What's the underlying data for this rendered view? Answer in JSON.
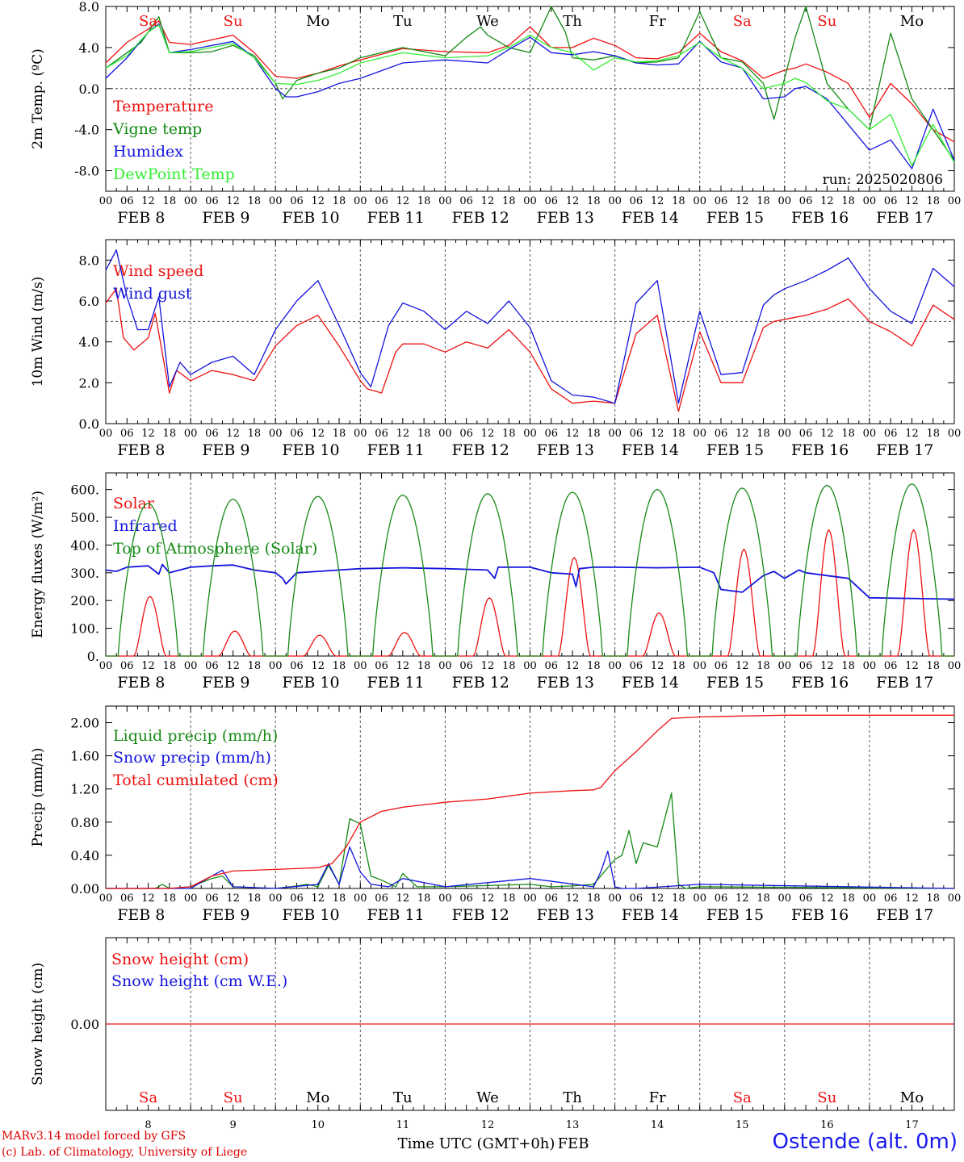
{
  "page": {
    "model_credit": "MARv3.14 model forced by GFS",
    "lab_credit": "(c) Lab. of Climatology, University of Liege",
    "station": "Ostende (alt. 0m)",
    "time_axis_title": "Time UTC (GMT+0h)",
    "month": "FEB"
  },
  "colors": {
    "red": "#ee1111",
    "green": "#158a15",
    "blue": "#1414dd",
    "light_green": "#33ee33",
    "grid": "#444444"
  },
  "axis": {
    "hour_ticks": [
      "00",
      "06",
      "12",
      "18"
    ],
    "end_tick": "00",
    "dates": [
      "FEB  8",
      "FEB  9",
      "FEB 10",
      "FEB 11",
      "FEB 12",
      "FEB 13",
      "FEB 14",
      "FEB 15",
      "FEB 16",
      "FEB 17"
    ],
    "weekdays": [
      "Sa",
      "Su",
      "Mo",
      "Tu",
      "We",
      "Th",
      "Fr",
      "Sa",
      "Su",
      "Mo"
    ],
    "weekend": [
      true,
      true,
      false,
      false,
      false,
      false,
      false,
      true,
      true,
      false
    ],
    "day_numbers": [
      "8",
      "9",
      "10",
      "11",
      "12",
      "13",
      "14",
      "15",
      "16",
      "17"
    ]
  },
  "chart_data": [
    {
      "type": "line",
      "ylabel": "2m Temp. (ºC)",
      "ylim": [
        -10,
        8
      ],
      "yticks": [
        8,
        4,
        0,
        -4,
        -8
      ],
      "ytick_labels": [
        "8.0",
        "4.0",
        "0.0",
        "-4.0",
        "-8.0"
      ],
      "x_unit": "hours since FEB 8 00 UTC",
      "ref_line": 0,
      "annotation": "run: 2025020806",
      "series": [
        {
          "name": "Temperature",
          "color": "red",
          "x": [
            0,
            6,
            12,
            15,
            18,
            24,
            36,
            42,
            48,
            54,
            60,
            66,
            72,
            84,
            96,
            108,
            114,
            120,
            126,
            132,
            138,
            144,
            150,
            156,
            162,
            168,
            174,
            180,
            186,
            192,
            195,
            198,
            204,
            210,
            216,
            222,
            228,
            234,
            240
          ],
          "y": [
            2.5,
            4.5,
            5.8,
            6.6,
            4.5,
            4.3,
            5.2,
            3.5,
            1.2,
            1.0,
            1.5,
            2.2,
            2.8,
            3.9,
            3.6,
            3.5,
            4.2,
            6.0,
            4.0,
            4.0,
            4.9,
            4.2,
            3.0,
            2.9,
            3.5,
            5.4,
            3.6,
            2.7,
            1.0,
            1.8,
            2.0,
            2.4,
            1.6,
            0.5,
            -2.8,
            0.5,
            -1.5,
            -4.0,
            -5.2
          ]
        },
        {
          "name": "Vigne temp",
          "color": "green",
          "x": [
            0,
            6,
            10,
            12,
            15,
            18,
            24,
            30,
            36,
            42,
            48,
            50,
            54,
            60,
            66,
            72,
            84,
            96,
            102,
            106,
            108,
            114,
            120,
            126,
            130,
            132,
            138,
            144,
            150,
            156,
            162,
            168,
            174,
            180,
            186,
            189,
            192,
            195,
            198,
            204,
            210,
            216,
            222,
            228,
            234,
            240
          ],
          "y": [
            2.0,
            3.5,
            4.5,
            5.5,
            7.0,
            3.5,
            3.5,
            3.6,
            4.2,
            3.2,
            0.5,
            -1.0,
            0.8,
            1.5,
            2.0,
            3.0,
            4.0,
            3.2,
            5.0,
            6.0,
            5.2,
            4.0,
            3.5,
            8.0,
            5.5,
            3.0,
            2.8,
            3.2,
            2.5,
            2.6,
            3.0,
            7.5,
            3.0,
            2.6,
            0.5,
            -3.0,
            1.0,
            5.0,
            8.0,
            0.5,
            -2.0,
            -4.0,
            5.4,
            -1.0,
            -4.0,
            -7.0
          ]
        },
        {
          "name": "Humidex",
          "color": "blue",
          "x": [
            0,
            6,
            12,
            15,
            18,
            24,
            36,
            42,
            48,
            51,
            54,
            60,
            66,
            72,
            84,
            96,
            108,
            114,
            120,
            126,
            132,
            138,
            144,
            150,
            156,
            162,
            168,
            174,
            180,
            186,
            192,
            195,
            198,
            204,
            210,
            216,
            222,
            228,
            234,
            240
          ],
          "y": [
            1.0,
            3.0,
            5.5,
            6.3,
            3.5,
            3.8,
            4.6,
            3.0,
            0.0,
            -0.8,
            -0.8,
            -0.3,
            0.5,
            1.0,
            2.5,
            2.8,
            2.5,
            3.8,
            5.0,
            3.5,
            3.3,
            3.6,
            3.2,
            2.5,
            2.3,
            2.4,
            4.6,
            2.6,
            2.0,
            -1.0,
            -0.8,
            0.0,
            0.2,
            -1.0,
            -3.5,
            -6.0,
            -5.0,
            -7.8,
            -2.0,
            -7.0
          ]
        },
        {
          "name": "DewPoint Temp",
          "color": "light_green",
          "x": [
            0,
            6,
            12,
            15,
            18,
            24,
            36,
            42,
            48,
            54,
            60,
            66,
            72,
            84,
            96,
            108,
            114,
            120,
            126,
            132,
            138,
            144,
            150,
            156,
            162,
            168,
            174,
            180,
            186,
            192,
            195,
            198,
            204,
            210,
            216,
            222,
            228,
            234,
            240
          ],
          "y": [
            2.0,
            3.2,
            5.5,
            6.2,
            3.5,
            3.6,
            4.4,
            3.0,
            0.5,
            0.4,
            0.8,
            1.5,
            2.5,
            3.5,
            3.0,
            3.2,
            4.0,
            5.2,
            4.0,
            3.5,
            1.8,
            3.0,
            2.6,
            2.7,
            3.2,
            4.5,
            3.0,
            2.0,
            0.0,
            0.5,
            1.0,
            0.6,
            -1.2,
            -2.0,
            -4.0,
            -2.5,
            -7.5,
            -3.5,
            -7.2
          ]
        }
      ]
    },
    {
      "type": "line",
      "ylabel": "10m Wind (m/s)",
      "ylim": [
        0,
        9
      ],
      "yticks": [
        0,
        2,
        4,
        6,
        8
      ],
      "ytick_labels": [
        "0.0",
        "2.0",
        "4.0",
        "6.0",
        "8.0"
      ],
      "ref_line": 5,
      "series": [
        {
          "name": "Wind speed",
          "color": "red",
          "x": [
            0,
            3,
            5,
            8,
            12,
            14,
            18,
            20,
            24,
            30,
            36,
            42,
            48,
            54,
            60,
            66,
            72,
            74,
            78,
            82,
            84,
            90,
            96,
            102,
            108,
            114,
            120,
            126,
            132,
            138,
            144,
            150,
            156,
            162,
            168,
            174,
            180,
            186,
            189,
            192,
            198,
            204,
            210,
            216,
            222,
            228,
            234,
            240
          ],
          "y": [
            5.9,
            6.6,
            4.2,
            3.6,
            4.2,
            5.4,
            1.5,
            2.6,
            2.1,
            2.6,
            2.4,
            2.1,
            3.8,
            4.8,
            5.3,
            3.8,
            2.1,
            1.7,
            1.5,
            3.5,
            3.9,
            3.9,
            3.5,
            4.0,
            3.7,
            4.6,
            3.5,
            1.7,
            1.0,
            1.1,
            1.0,
            4.4,
            5.3,
            0.6,
            4.5,
            2.0,
            2.0,
            4.7,
            5.0,
            5.1,
            5.3,
            5.6,
            6.1,
            5.0,
            4.5,
            3.8,
            5.8,
            5.1
          ]
        },
        {
          "name": "Wind gust",
          "color": "blue",
          "x": [
            0,
            3,
            6,
            9,
            12,
            15,
            18,
            21,
            24,
            30,
            36,
            42,
            48,
            54,
            60,
            66,
            72,
            75,
            80,
            84,
            90,
            96,
            102,
            108,
            114,
            120,
            126,
            132,
            138,
            144,
            150,
            156,
            162,
            168,
            174,
            180,
            186,
            189,
            192,
            198,
            204,
            210,
            216,
            222,
            228,
            234,
            240
          ],
          "y": [
            7.5,
            8.5,
            6.2,
            4.6,
            4.6,
            6.2,
            1.8,
            3.0,
            2.4,
            3.0,
            3.3,
            2.4,
            4.6,
            6.0,
            7.0,
            4.8,
            2.5,
            1.8,
            4.8,
            5.9,
            5.5,
            4.6,
            5.5,
            4.9,
            6.0,
            4.7,
            2.1,
            1.4,
            1.3,
            1.0,
            5.9,
            7.0,
            1.0,
            5.5,
            2.4,
            2.5,
            5.8,
            6.3,
            6.6,
            7.0,
            7.5,
            8.1,
            6.6,
            5.5,
            4.9,
            7.6,
            6.7
          ]
        }
      ]
    },
    {
      "type": "line",
      "ylabel": "Energy fluxes (W/m²)",
      "ylim": [
        0,
        660
      ],
      "yticks": [
        0,
        100,
        200,
        300,
        400,
        500,
        600
      ],
      "ytick_labels": [
        "0.",
        "100.",
        "200.",
        "300.",
        "400.",
        "500.",
        "600."
      ],
      "series": [
        {
          "name": "Solar",
          "color": "red",
          "peak_hours": [
            12.5,
            12.5,
            12.5,
            12.5,
            12.5,
            12.5,
            12.5,
            12.5,
            12.5,
            12.5
          ],
          "peak_values": [
            215,
            90,
            75,
            85,
            210,
            355,
            155,
            385,
            455,
            455
          ]
        },
        {
          "name": "Infrared",
          "color": "blue",
          "x": [
            0,
            3,
            6,
            12,
            15,
            16,
            18,
            24,
            30,
            36,
            42,
            48,
            50,
            51,
            54,
            60,
            66,
            72,
            84,
            96,
            108,
            110,
            111,
            114,
            120,
            126,
            132,
            133,
            134,
            138,
            144,
            156,
            168,
            172,
            174,
            180,
            186,
            189,
            192,
            196,
            198,
            204,
            210,
            216,
            240
          ],
          "y": [
            310,
            305,
            320,
            325,
            295,
            330,
            300,
            320,
            325,
            328,
            310,
            300,
            280,
            260,
            300,
            305,
            310,
            315,
            318,
            315,
            310,
            280,
            320,
            320,
            320,
            300,
            295,
            250,
            315,
            320,
            320,
            318,
            320,
            300,
            240,
            230,
            290,
            305,
            280,
            310,
            300,
            290,
            280,
            210,
            205
          ]
        },
        {
          "name": "Top of Atmosphere (Solar)",
          "color": "green",
          "peak_hours": [
            12,
            12,
            12,
            12,
            12,
            12,
            12,
            12,
            12,
            12
          ],
          "peak_values": [
            550,
            565,
            575,
            580,
            585,
            590,
            600,
            605,
            615,
            620
          ]
        }
      ]
    },
    {
      "type": "line",
      "ylabel": "Precip (mm/h)",
      "ylim": [
        0,
        2.2
      ],
      "yticks": [
        0,
        0.4,
        0.8,
        1.2,
        1.6,
        2.0
      ],
      "ytick_labels": [
        "0.00",
        "0.40",
        "0.80",
        "1.20",
        "1.60",
        "2.00"
      ],
      "series": [
        {
          "name": "Liquid precip (mm/h)",
          "color": "green",
          "x": [
            0,
            14,
            16,
            18,
            24,
            30,
            33,
            36,
            48,
            54,
            57,
            60,
            63,
            66,
            69,
            72,
            75,
            78,
            82,
            84,
            88,
            96,
            120,
            126,
            132,
            138,
            142,
            144,
            146,
            148,
            150,
            152,
            156,
            160,
            162,
            164,
            168,
            240
          ],
          "y": [
            0,
            0,
            0.05,
            0,
            0.02,
            0.12,
            0.15,
            0.02,
            0,
            0.03,
            0.05,
            0.02,
            0.28,
            0.05,
            0.84,
            0.78,
            0.15,
            0.1,
            0.02,
            0.18,
            0.02,
            0.02,
            0.05,
            0.02,
            0.03,
            0.05,
            0.25,
            0.35,
            0.4,
            0.7,
            0.3,
            0.55,
            0.5,
            1.15,
            0.05,
            0,
            0.02,
            0
          ]
        },
        {
          "name": "Snow precip (mm/h)",
          "color": "blue",
          "x": [
            0,
            24,
            30,
            33,
            36,
            48,
            60,
            63,
            66,
            69,
            72,
            75,
            80,
            84,
            96,
            120,
            138,
            140,
            142,
            144,
            146,
            150,
            168,
            240
          ],
          "y": [
            0,
            0,
            0.15,
            0.22,
            0.02,
            0,
            0.05,
            0.3,
            0.05,
            0.5,
            0.2,
            0.05,
            0.02,
            0.12,
            0.02,
            0.12,
            0.02,
            0.2,
            0.45,
            0.02,
            0,
            0,
            0.05,
            0
          ]
        },
        {
          "name": "Total cumulated (cm)",
          "color": "red",
          "x": [
            0,
            18,
            24,
            30,
            36,
            48,
            60,
            64,
            68,
            72,
            78,
            84,
            96,
            108,
            120,
            132,
            138,
            140,
            144,
            150,
            156,
            160,
            168,
            180,
            192,
            240
          ],
          "y": [
            0,
            0,
            0.02,
            0.15,
            0.21,
            0.23,
            0.25,
            0.3,
            0.5,
            0.8,
            0.93,
            0.98,
            1.04,
            1.08,
            1.15,
            1.18,
            1.19,
            1.22,
            1.42,
            1.65,
            1.9,
            2.05,
            2.07,
            2.08,
            2.09,
            2.09
          ]
        }
      ]
    },
    {
      "type": "line",
      "ylabel": "Snow height (cm)",
      "ylim": [
        -1,
        1
      ],
      "yticks": [
        0
      ],
      "ytick_labels": [
        "0.00"
      ],
      "series": [
        {
          "name": "Snow height (cm)",
          "color": "red",
          "x": [
            0,
            240
          ],
          "y": [
            0,
            0
          ]
        },
        {
          "name": "Snow height (cm W.E.)",
          "color": "blue",
          "x": [],
          "y": []
        }
      ]
    }
  ]
}
